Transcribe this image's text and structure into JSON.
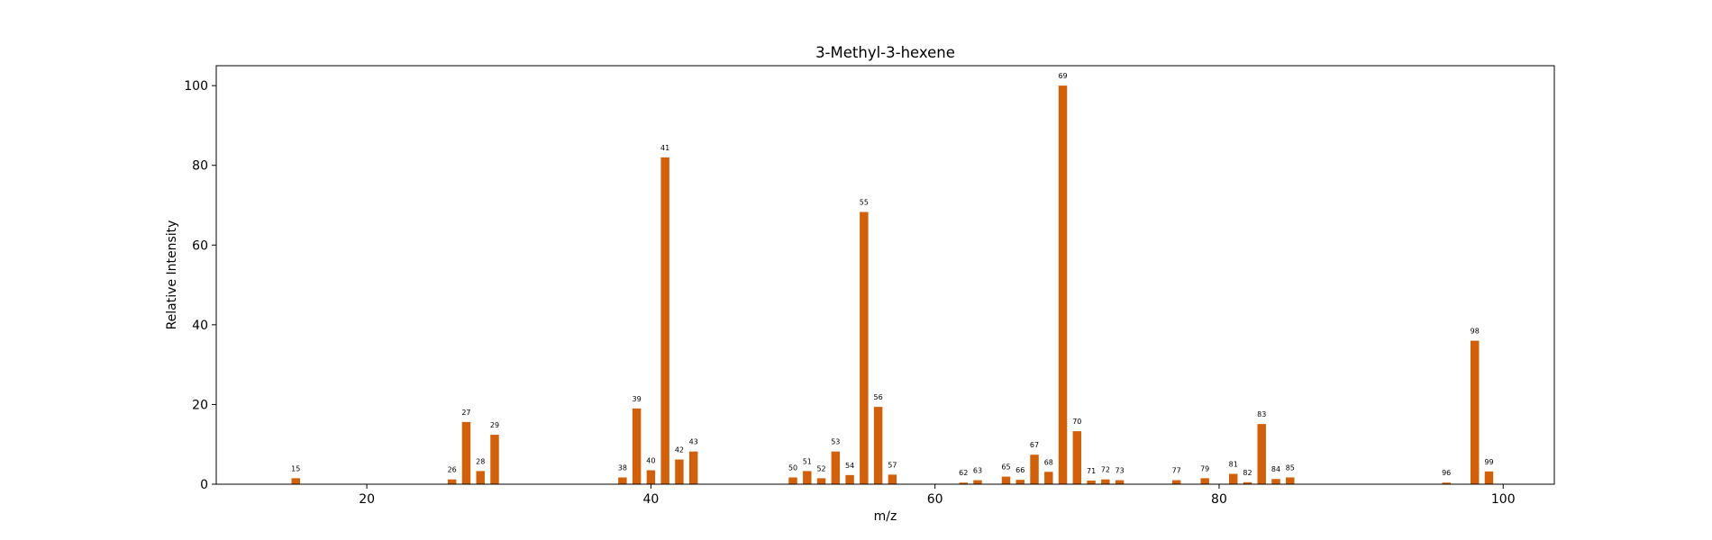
{
  "chart_data": {
    "type": "bar",
    "title": "3-Methyl-3-hexene",
    "xlabel": "m/z",
    "ylabel": "Relative Intensity",
    "xlim": [
      9.4,
      103.6
    ],
    "ylim": [
      0,
      105
    ],
    "xticks": [
      20,
      40,
      60,
      80,
      100
    ],
    "yticks": [
      0,
      20,
      40,
      60,
      80,
      100
    ],
    "grid": false,
    "bar_color": "#d2600b",
    "series": [
      {
        "x": [
          15,
          26,
          27,
          28,
          29,
          38,
          39,
          40,
          41,
          42,
          43,
          50,
          51,
          52,
          53,
          54,
          55,
          56,
          57,
          62,
          63,
          65,
          66,
          67,
          68,
          69,
          70,
          71,
          72,
          73,
          77,
          79,
          81,
          82,
          83,
          84,
          85,
          96,
          98,
          99
        ],
        "values": [
          1.5,
          1.2,
          15.6,
          3.3,
          12.4,
          1.7,
          19.0,
          3.5,
          82.0,
          6.2,
          8.2,
          1.7,
          3.3,
          1.5,
          8.2,
          2.3,
          68.3,
          19.4,
          2.4,
          0.4,
          1.0,
          1.9,
          1.1,
          7.4,
          3.1,
          100.0,
          13.3,
          0.9,
          1.2,
          1.0,
          1.0,
          1.5,
          2.6,
          0.5,
          15.1,
          1.3,
          1.7,
          0.4,
          36.0,
          3.2
        ]
      }
    ]
  }
}
